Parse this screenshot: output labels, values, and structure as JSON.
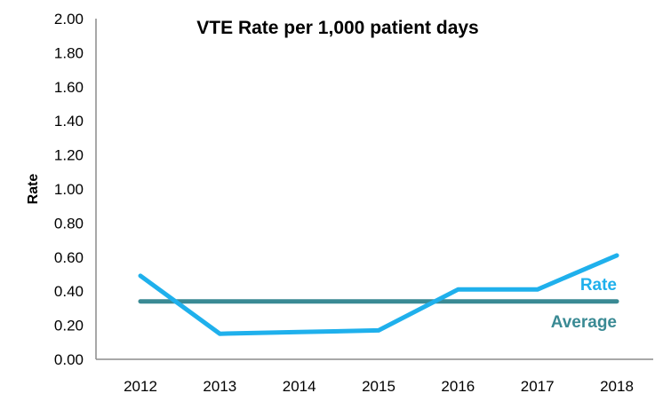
{
  "chart_data": {
    "type": "line",
    "title": "VTE Rate per 1,000 patient days",
    "xlabel": "",
    "ylabel": "Rate",
    "categories": [
      "2012",
      "2013",
      "2014",
      "2015",
      "2016",
      "2017",
      "2018"
    ],
    "ylim": [
      0,
      2.0
    ],
    "ytick_labels": [
      "0.00",
      "0.20",
      "0.40",
      "0.60",
      "0.80",
      "1.00",
      "1.20",
      "1.40",
      "1.60",
      "1.80",
      "2.00"
    ],
    "grid": false,
    "series": [
      {
        "name": "Rate",
        "color": "#1fb0ec",
        "values": [
          0.49,
          0.15,
          0.16,
          0.17,
          0.41,
          0.41,
          0.61
        ]
      },
      {
        "name": "Average",
        "color": "#3a8a94",
        "values": [
          0.34,
          0.34,
          0.34,
          0.34,
          0.34,
          0.34,
          0.34
        ]
      }
    ]
  }
}
